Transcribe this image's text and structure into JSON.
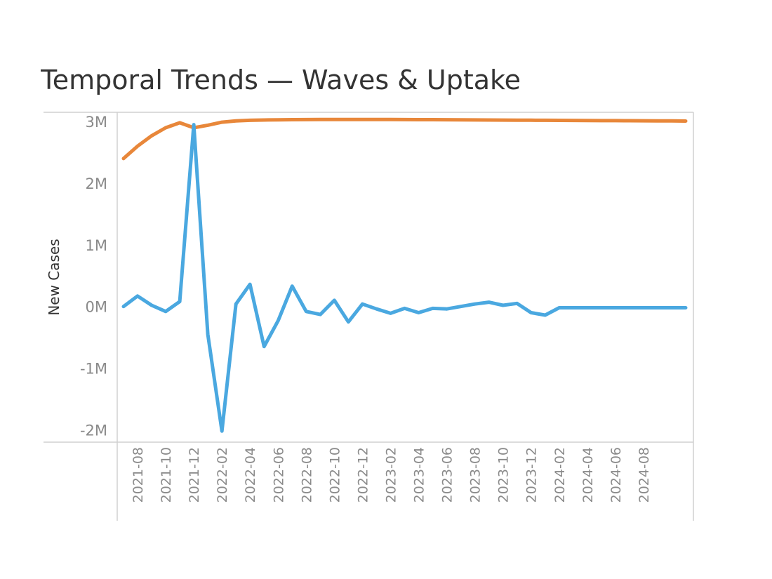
{
  "chart_data": {
    "type": "line",
    "title": "Temporal Trends — Waves & Uptake",
    "xlabel": "",
    "ylabel": "New Cases",
    "ylim": [
      -2200000,
      3150000
    ],
    "y_ticks": [
      {
        "value": 3000000,
        "label": "3M"
      },
      {
        "value": 2000000,
        "label": "2M"
      },
      {
        "value": 1000000,
        "label": "1M"
      },
      {
        "value": 0,
        "label": "0M"
      },
      {
        "value": -1000000,
        "label": "-1M"
      },
      {
        "value": -2000000,
        "label": "-2M"
      }
    ],
    "x_tick_labels": [
      "2021-08",
      "2021-10",
      "2021-12",
      "2022-02",
      "2022-04",
      "2022-06",
      "2022-08",
      "2022-10",
      "2022-12",
      "2023-02",
      "2023-04",
      "2023-06",
      "2023-08",
      "2023-10",
      "2023-12",
      "2024-02",
      "2024-04",
      "2024-06",
      "2024-08"
    ],
    "grid": false,
    "legend": "none",
    "x": [
      "2021-07",
      "2021-08",
      "2021-09",
      "2021-10",
      "2021-11",
      "2021-12",
      "2022-01",
      "2022-02",
      "2022-03",
      "2022-04",
      "2022-05",
      "2022-06",
      "2022-07",
      "2022-08",
      "2022-09",
      "2022-10",
      "2022-11",
      "2022-12",
      "2023-01",
      "2023-02",
      "2023-03",
      "2023-04",
      "2023-05",
      "2023-06",
      "2023-07",
      "2023-08",
      "2023-09",
      "2023-10",
      "2023-11",
      "2023-12",
      "2024-01",
      "2024-02",
      "2024-03",
      "2024-04",
      "2024-05",
      "2024-06",
      "2024-07",
      "2024-08",
      "2024-09",
      "2024-10",
      "2024-11"
    ],
    "series": [
      {
        "color": "#e8873a",
        "values": [
          2400000,
          2600000,
          2770000,
          2900000,
          2980000,
          2900000,
          2940000,
          2990000,
          3010000,
          3020000,
          3025000,
          3028000,
          3030000,
          3032000,
          3033000,
          3033000,
          3033000,
          3033000,
          3033000,
          3033000,
          3032000,
          3031000,
          3030000,
          3029000,
          3028000,
          3026000,
          3025000,
          3024000,
          3022000,
          3021000,
          3020000,
          3019000,
          3018000,
          3016000,
          3015000,
          3014000,
          3013000,
          3012000,
          3011000,
          3010000,
          3008000
        ]
      },
      {
        "color": "#4aa8e0",
        "values": [
          0,
          170000,
          20000,
          -80000,
          80000,
          2950000,
          -450000,
          -2020000,
          40000,
          360000,
          -650000,
          -230000,
          330000,
          -80000,
          -130000,
          100000,
          -250000,
          40000,
          -40000,
          -110000,
          -30000,
          -100000,
          -30000,
          -40000,
          0,
          40000,
          70000,
          20000,
          50000,
          -100000,
          -140000,
          -20000,
          -20000,
          -20000,
          -20000,
          -20000,
          -20000,
          -20000,
          -20000,
          -20000,
          -20000
        ]
      }
    ]
  }
}
